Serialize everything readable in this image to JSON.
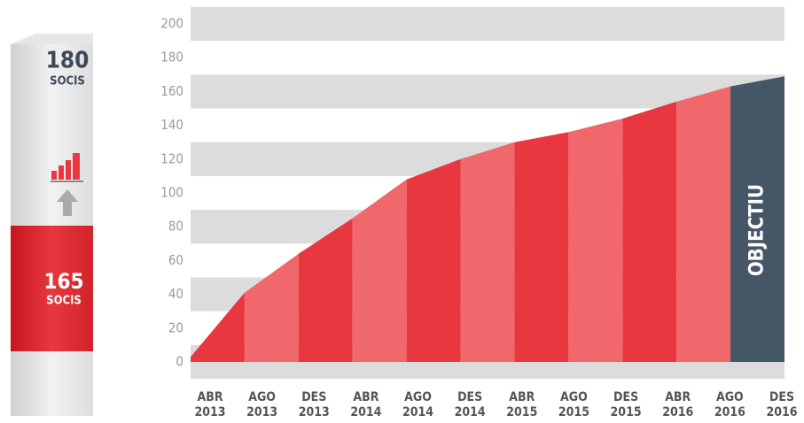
{
  "chart_data": {
    "type": "area",
    "categories": [
      "ABR 2013",
      "AGO 2013",
      "DES 2013",
      "ABR 2014",
      "AGO 2014",
      "DES 2014",
      "ABR 2015",
      "AGO 2015",
      "DES 2015",
      "ABR 2016",
      "AGO 2016",
      "DES 2016"
    ],
    "values": [
      3,
      41,
      64,
      85,
      108,
      120,
      130,
      136,
      144,
      154,
      163,
      169
    ],
    "colors": [
      "#e8373f",
      "#f0686c",
      "#e8373f",
      "#f0686c",
      "#e8373f",
      "#f0686c",
      "#e8373f",
      "#f0686c",
      "#e8373f",
      "#f0686c",
      "#455666"
    ],
    "ylim": [
      0,
      200
    ],
    "yticks": [
      0,
      20,
      40,
      60,
      80,
      100,
      120,
      140,
      160,
      180,
      200
    ],
    "grid_color": "#dcdcdc",
    "annotation": "OBJECTIU"
  },
  "pillar": {
    "target": "180",
    "target_unit": "SOCIS",
    "current": "165",
    "current_unit": "SOCIS"
  }
}
